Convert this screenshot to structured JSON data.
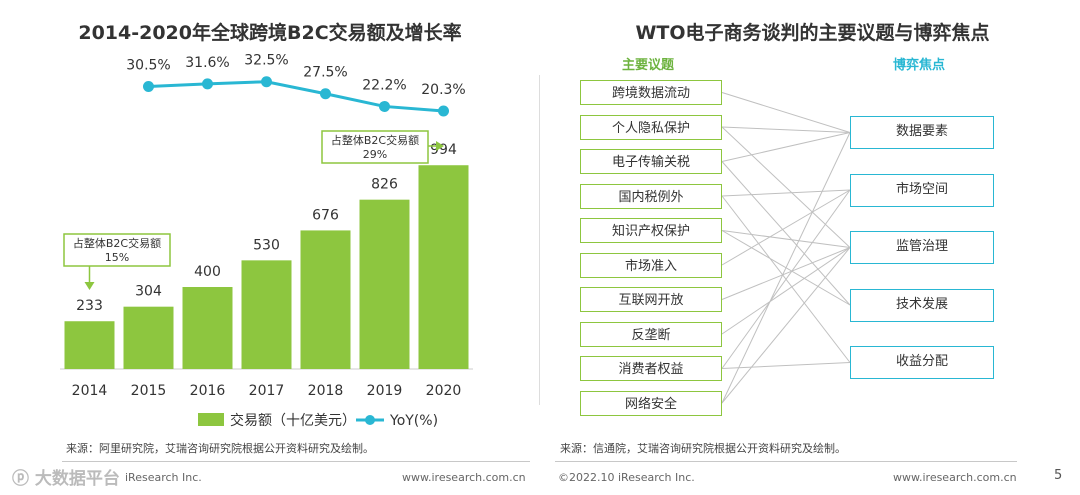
{
  "left": {
    "title": "2014-2020年全球跨境B2C交易额及增长率",
    "source": "来源：阿里研究院，艾瑞咨询研究院根据公开资料研究及绘制。",
    "footer_brand": "iResearch Inc.",
    "footer_url": "www.iresearch.com.cn",
    "watermark": "大数据平台"
  },
  "chart_data": {
    "type": "bar",
    "categories": [
      "2014",
      "2015",
      "2016",
      "2017",
      "2018",
      "2019",
      "2020"
    ],
    "series": [
      {
        "name": "交易额（十亿美元）",
        "type": "bar",
        "color": "#8dc63f",
        "values": [
          233,
          304,
          400,
          530,
          676,
          826,
          994
        ]
      },
      {
        "name": "YoY(%)",
        "type": "line",
        "color": "#29b7d3",
        "values": [
          30.5,
          31.6,
          32.5,
          27.5,
          22.2,
          20.3
        ],
        "x": [
          "2015",
          "2016",
          "2017",
          "2018",
          "2019",
          "2020"
        ],
        "labels": [
          "30.5%",
          "31.6%",
          "32.5%",
          "27.5%",
          "22.2%",
          "20.3%"
        ]
      }
    ],
    "annotations": [
      {
        "text": "占整体B2C交易额",
        "value": "15%",
        "year": "2014"
      },
      {
        "text": "占整体B2C交易额",
        "value": "29%",
        "year": "2020"
      }
    ],
    "legend": [
      "交易额（十亿美元）",
      "YoY(%)"
    ],
    "legend_position": "bottom"
  },
  "right": {
    "title": "WTO电子商务谈判的主要议题与博弈焦点",
    "issues_header": "主要议题",
    "focus_header": "博弈焦点",
    "issues": [
      "跨境数据流动",
      "个人隐私保护",
      "电子传输关税",
      "国内税例外",
      "知识产权保护",
      "市场准入",
      "互联网开放",
      "反垄断",
      "消费者权益",
      "网络安全"
    ],
    "focuses": [
      "数据要素",
      "市场空间",
      "监管治理",
      "技术发展",
      "收益分配"
    ],
    "source": "来源：信通院，艾瑞咨询研究院根据公开资料研究及绘制。",
    "footer_copyright": "©2022.10 iResearch Inc.",
    "footer_url": "www.iresearch.com.cn",
    "page_number": "5"
  },
  "colors": {
    "green": "#8dc63f",
    "blue": "#29b7d3",
    "line_gray": "#c0c0c0"
  }
}
